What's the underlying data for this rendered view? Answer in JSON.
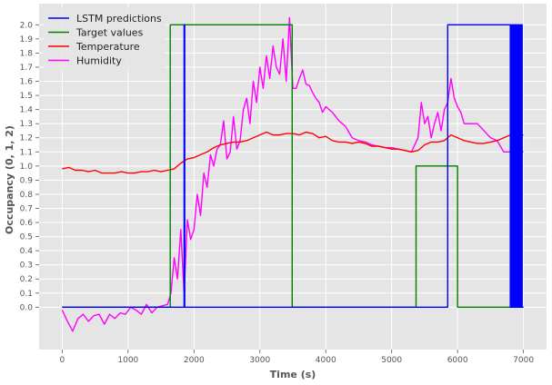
{
  "chart_data": {
    "type": "line",
    "title": "",
    "xlabel": "Time (s)",
    "ylabel": "Occupancy (0, 1, 2)",
    "xlim": [
      -350,
      7350
    ],
    "ylim": [
      -0.3,
      2.15
    ],
    "x_ticks": [
      0,
      1000,
      2000,
      3000,
      4000,
      5000,
      6000,
      7000
    ],
    "y_ticks": [
      0.0,
      0.1,
      0.2,
      0.3,
      0.4,
      0.5,
      0.6,
      0.7,
      0.8,
      0.9,
      1.0,
      1.1,
      1.2,
      1.3,
      1.4,
      1.5,
      1.6,
      1.7,
      1.8,
      1.9,
      2.0
    ],
    "grid": true,
    "legend_position": "top-left",
    "series": [
      {
        "name": "LSTM predictions",
        "color": "#0000ff",
        "x": [
          0,
          1850,
          1850,
          1860,
          1860,
          5850,
          5850,
          5860,
          5860,
          6800,
          6800,
          6810,
          6810,
          6820,
          6820,
          6830,
          6830,
          6840,
          6840,
          6850,
          6850,
          6860,
          6860,
          6870,
          6870,
          6880,
          6880,
          6890,
          6890,
          6900,
          6900,
          6910,
          6910,
          6920,
          6920,
          6930,
          6930,
          6940,
          6940,
          6950,
          6950,
          6960,
          6960,
          6970,
          6970,
          6980,
          6980,
          7000
        ],
        "y": [
          0,
          0,
          2,
          2,
          0,
          0,
          2,
          2,
          2,
          2,
          0,
          0,
          2,
          2,
          0,
          0,
          2,
          2,
          0,
          0,
          2,
          2,
          0,
          0,
          2,
          2,
          0,
          0,
          2,
          2,
          0,
          0,
          2,
          2,
          0,
          0,
          2,
          2,
          0,
          0,
          2,
          2,
          0,
          0,
          2,
          2,
          0,
          0
        ]
      },
      {
        "name": "Target values",
        "color": "#008000",
        "x": [
          0,
          1640,
          1640,
          3490,
          3490,
          5370,
          5370,
          6000,
          6000,
          7000
        ],
        "y": [
          0,
          0,
          2,
          2,
          0,
          0,
          1,
          1,
          0,
          0
        ]
      },
      {
        "name": "Temperature",
        "color": "#ff0000",
        "x": [
          0,
          100,
          200,
          300,
          400,
          500,
          600,
          700,
          800,
          900,
          1000,
          1100,
          1200,
          1300,
          1400,
          1500,
          1600,
          1700,
          1800,
          1900,
          2000,
          2100,
          2200,
          2300,
          2400,
          2500,
          2600,
          2700,
          2800,
          2900,
          3000,
          3100,
          3200,
          3300,
          3400,
          3500,
          3600,
          3700,
          3800,
          3900,
          4000,
          4100,
          4200,
          4300,
          4400,
          4500,
          4600,
          4700,
          4800,
          4900,
          5000,
          5100,
          5200,
          5300,
          5400,
          5500,
          5600,
          5700,
          5800,
          5900,
          6000,
          6100,
          6200,
          6300,
          6400,
          6500,
          6600,
          6700,
          6800,
          6900,
          7000
        ],
        "y": [
          0.98,
          0.99,
          0.97,
          0.97,
          0.96,
          0.97,
          0.95,
          0.95,
          0.95,
          0.96,
          0.95,
          0.95,
          0.96,
          0.96,
          0.97,
          0.96,
          0.97,
          0.98,
          1.02,
          1.05,
          1.06,
          1.08,
          1.1,
          1.13,
          1.15,
          1.16,
          1.17,
          1.17,
          1.18,
          1.2,
          1.22,
          1.24,
          1.22,
          1.22,
          1.23,
          1.23,
          1.22,
          1.24,
          1.23,
          1.2,
          1.21,
          1.18,
          1.17,
          1.17,
          1.16,
          1.17,
          1.16,
          1.14,
          1.14,
          1.13,
          1.12,
          1.12,
          1.11,
          1.1,
          1.11,
          1.15,
          1.17,
          1.17,
          1.18,
          1.22,
          1.2,
          1.18,
          1.17,
          1.16,
          1.16,
          1.17,
          1.18,
          1.2,
          1.22,
          1.22,
          1.22
        ]
      },
      {
        "name": "Humidity",
        "color": "#ff00ff",
        "x": [
          0,
          80,
          160,
          240,
          320,
          400,
          480,
          560,
          640,
          720,
          800,
          880,
          960,
          1040,
          1120,
          1200,
          1280,
          1360,
          1440,
          1520,
          1600,
          1650,
          1700,
          1750,
          1800,
          1850,
          1900,
          1950,
          2000,
          2050,
          2100,
          2150,
          2200,
          2250,
          2300,
          2350,
          2400,
          2450,
          2500,
          2550,
          2600,
          2650,
          2700,
          2750,
          2800,
          2850,
          2900,
          2950,
          3000,
          3050,
          3100,
          3150,
          3200,
          3250,
          3300,
          3350,
          3400,
          3450,
          3500,
          3550,
          3600,
          3650,
          3700,
          3750,
          3800,
          3850,
          3900,
          3950,
          4000,
          4100,
          4200,
          4300,
          4400,
          4500,
          4600,
          4700,
          4800,
          4900,
          5000,
          5100,
          5200,
          5300,
          5400,
          5450,
          5500,
          5550,
          5600,
          5650,
          5700,
          5750,
          5800,
          5850,
          5900,
          5950,
          6000,
          6050,
          6100,
          6200,
          6300,
          6400,
          6500,
          6600,
          6700,
          6800,
          6900,
          7000
        ],
        "y": [
          -0.02,
          -0.1,
          -0.17,
          -0.08,
          -0.05,
          -0.1,
          -0.06,
          -0.05,
          -0.12,
          -0.05,
          -0.08,
          -0.04,
          -0.05,
          0.0,
          -0.02,
          -0.05,
          0.02,
          -0.04,
          0.0,
          0.01,
          0.02,
          0.1,
          0.35,
          0.2,
          0.55,
          0.1,
          0.62,
          0.48,
          0.55,
          0.8,
          0.65,
          0.95,
          0.85,
          1.08,
          1.0,
          1.12,
          1.15,
          1.32,
          1.05,
          1.1,
          1.35,
          1.12,
          1.18,
          1.4,
          1.48,
          1.3,
          1.6,
          1.45,
          1.7,
          1.55,
          1.78,
          1.62,
          1.85,
          1.7,
          1.65,
          1.9,
          1.6,
          2.05,
          1.55,
          1.55,
          1.62,
          1.68,
          1.58,
          1.57,
          1.52,
          1.48,
          1.45,
          1.38,
          1.42,
          1.38,
          1.32,
          1.28,
          1.2,
          1.18,
          1.17,
          1.15,
          1.14,
          1.13,
          1.13,
          1.12,
          1.11,
          1.1,
          1.2,
          1.45,
          1.3,
          1.35,
          1.2,
          1.3,
          1.38,
          1.25,
          1.4,
          1.45,
          1.62,
          1.48,
          1.42,
          1.38,
          1.3,
          1.3,
          1.3,
          1.25,
          1.2,
          1.18,
          1.1,
          1.1,
          1.12,
          1.1
        ]
      }
    ]
  }
}
